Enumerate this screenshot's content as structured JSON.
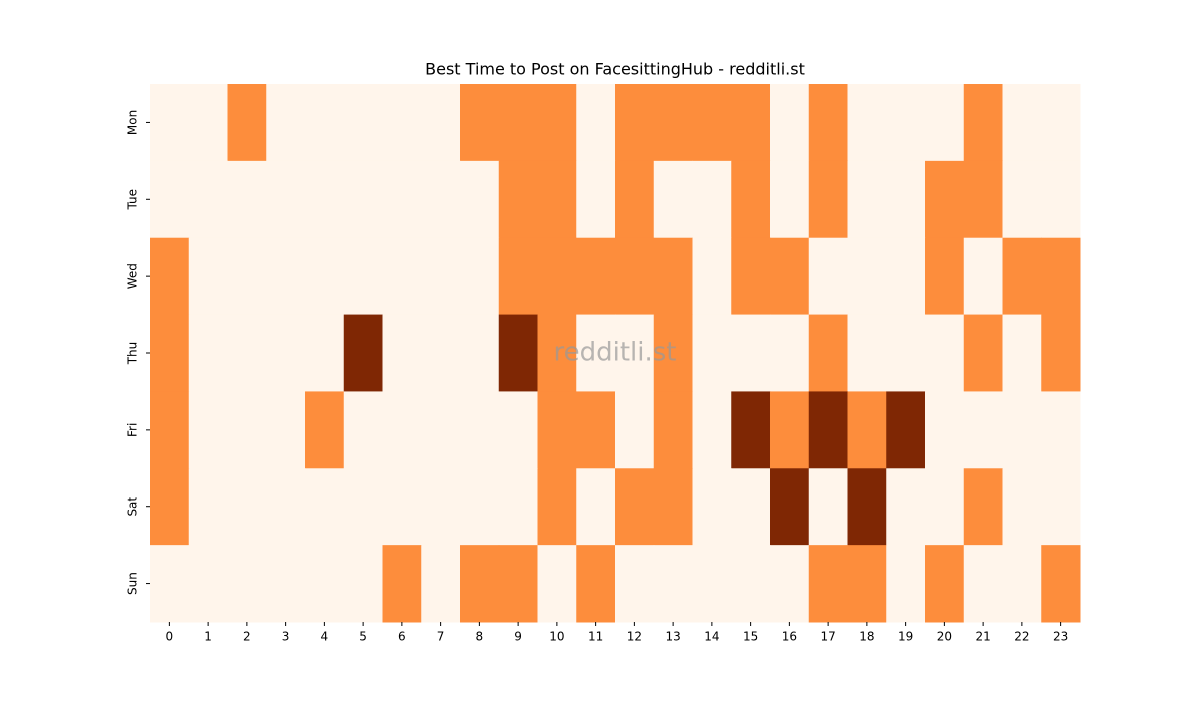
{
  "chart_data": {
    "type": "heatmap",
    "title": "Best Time to Post on FacesittingHub - redditli.st",
    "watermark": "redditli.st",
    "x_categories": [
      "0",
      "1",
      "2",
      "3",
      "4",
      "5",
      "6",
      "7",
      "8",
      "9",
      "10",
      "11",
      "12",
      "13",
      "14",
      "15",
      "16",
      "17",
      "18",
      "19",
      "20",
      "21",
      "22",
      "23"
    ],
    "y_categories": [
      "Mon",
      "Tue",
      "Wed",
      "Thu",
      "Fri",
      "Sat",
      "Sun"
    ],
    "values": [
      [
        0,
        0,
        1,
        0,
        0,
        0,
        0,
        0,
        1,
        1,
        1,
        0,
        1,
        1,
        1,
        1,
        0,
        1,
        0,
        0,
        0,
        1,
        0,
        0
      ],
      [
        0,
        0,
        0,
        0,
        0,
        0,
        0,
        0,
        0,
        1,
        1,
        0,
        1,
        0,
        0,
        1,
        0,
        1,
        0,
        0,
        1,
        1,
        0,
        0
      ],
      [
        1,
        0,
        0,
        0,
        0,
        0,
        0,
        0,
        0,
        1,
        1,
        1,
        1,
        1,
        0,
        1,
        1,
        0,
        0,
        0,
        1,
        0,
        1,
        1
      ],
      [
        1,
        0,
        0,
        0,
        0,
        2,
        0,
        0,
        0,
        2,
        1,
        0,
        0,
        1,
        0,
        0,
        0,
        1,
        0,
        0,
        0,
        1,
        0,
        1
      ],
      [
        1,
        0,
        0,
        0,
        1,
        0,
        0,
        0,
        0,
        0,
        1,
        1,
        0,
        1,
        0,
        2,
        1,
        2,
        1,
        2,
        0,
        0,
        0,
        0
      ],
      [
        1,
        0,
        0,
        0,
        0,
        0,
        0,
        0,
        0,
        0,
        1,
        0,
        1,
        1,
        0,
        0,
        2,
        0,
        2,
        0,
        0,
        1,
        0,
        0
      ],
      [
        0,
        0,
        0,
        0,
        0,
        0,
        1,
        0,
        1,
        1,
        0,
        1,
        0,
        0,
        0,
        0,
        0,
        1,
        1,
        0,
        1,
        0,
        0,
        1
      ]
    ],
    "colors": [
      "#fff5eb",
      "#fd8d3c",
      "#7f2704"
    ]
  }
}
